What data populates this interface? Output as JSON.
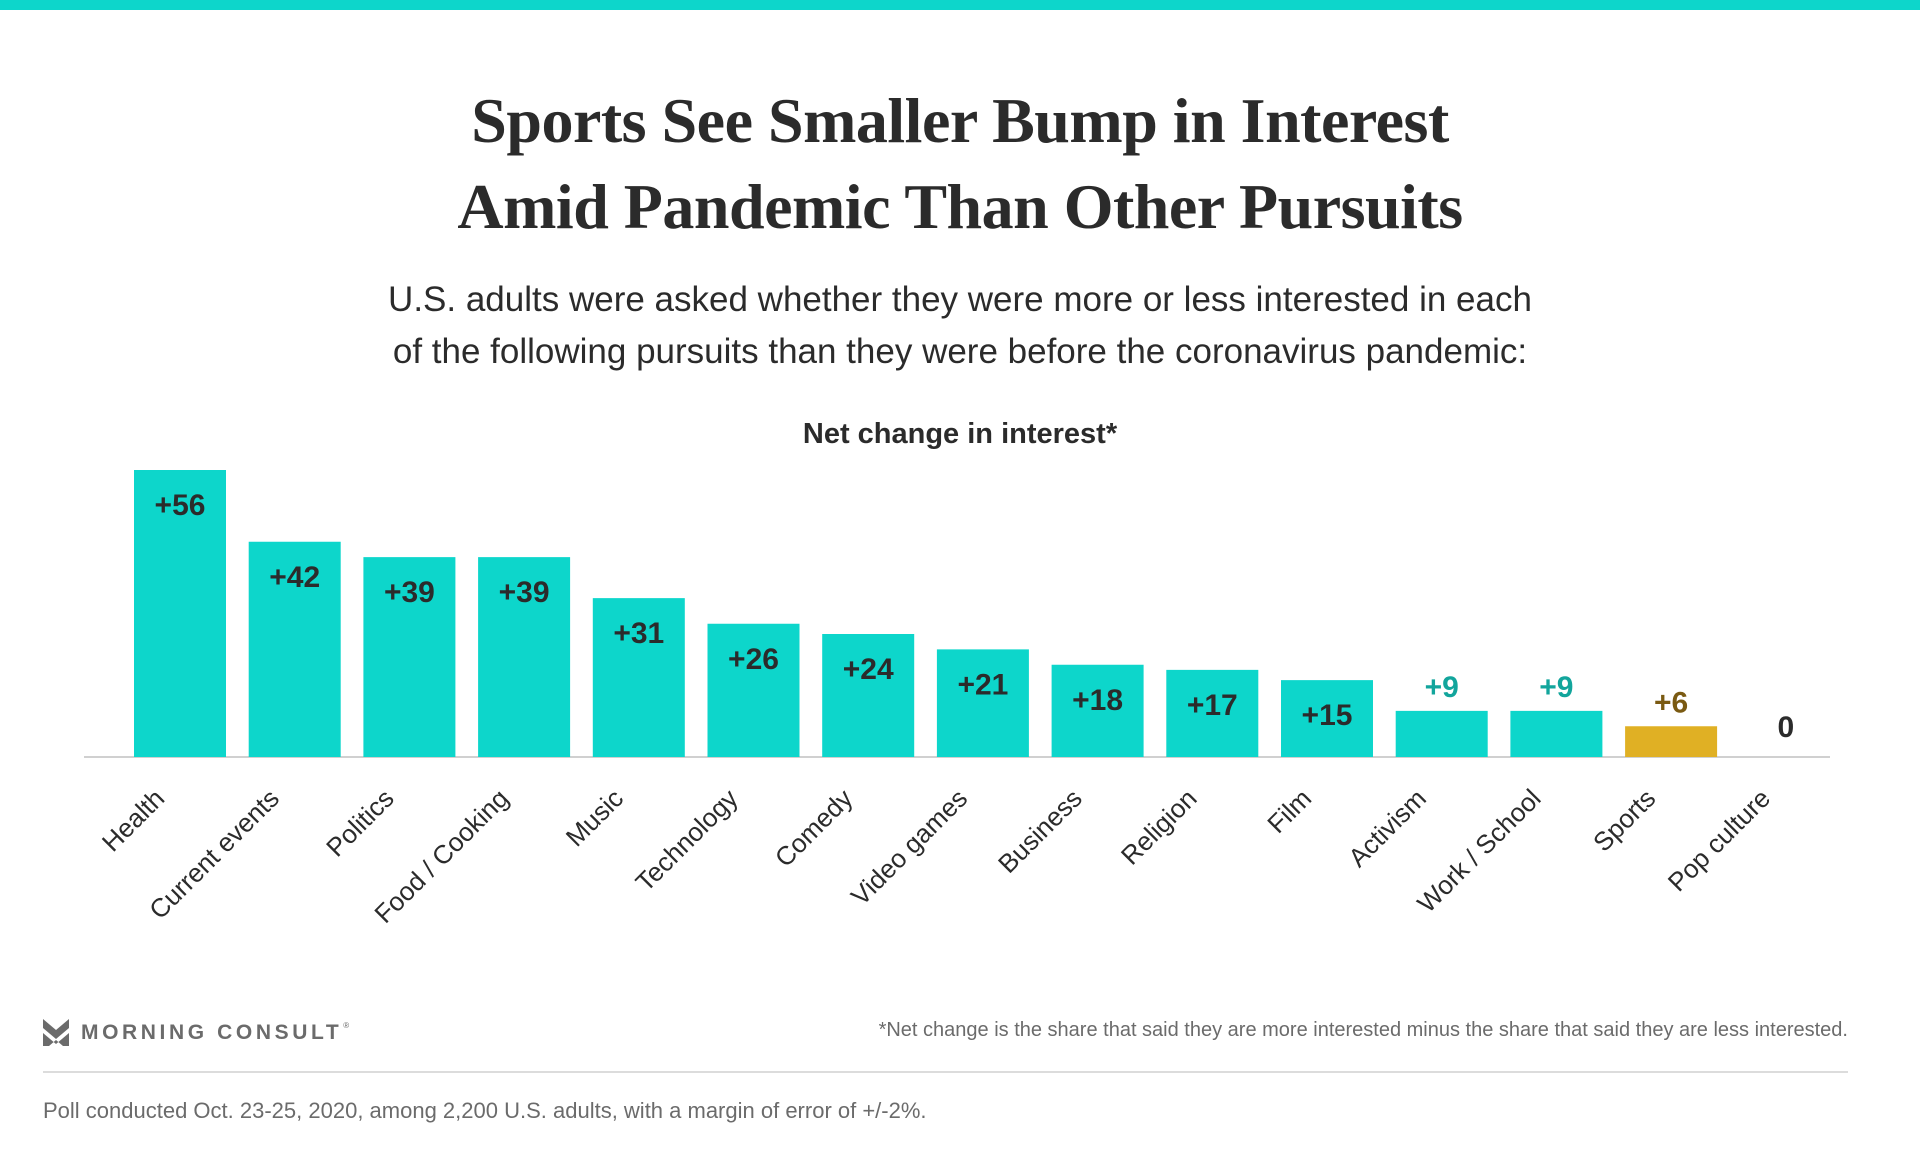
{
  "header": {
    "title_line1": "Sports See Smaller Bump in Interest",
    "title_line2": "Amid Pandemic Than Other Pursuits",
    "subtitle_line1": "U.S. adults were asked whether they were more or less interested in each",
    "subtitle_line2": "of the following pursuits than they were before the coronavirus pandemic:"
  },
  "colors": {
    "accent": "#0dd6cb",
    "highlight": "#e0b024",
    "label_dark": "#2b2b2b",
    "label_teal": "#12a59c",
    "label_highlight": "#7a5a12",
    "baseline": "#d0d0d0"
  },
  "chart_data": {
    "type": "bar",
    "title": "Net change in interest*",
    "xlabel": "",
    "ylabel": "",
    "ylim": [
      0,
      56
    ],
    "grid": false,
    "categories": [
      "Health",
      "Current events",
      "Politics",
      "Food / Cooking",
      "Music",
      "Technology",
      "Comedy",
      "Video games",
      "Business",
      "Religion",
      "Film",
      "Activism",
      "Work / School",
      "Sports",
      "Pop culture"
    ],
    "values": [
      56,
      42,
      39,
      39,
      31,
      26,
      24,
      21,
      18,
      17,
      15,
      9,
      9,
      6,
      0
    ],
    "value_labels": [
      "+56",
      "+42",
      "+39",
      "+39",
      "+31",
      "+26",
      "+24",
      "+21",
      "+18",
      "+17",
      "+15",
      "+9",
      "+9",
      "+6",
      "0"
    ],
    "highlighted_category": "Sports"
  },
  "footer": {
    "brand": "MORNING CONSULT",
    "brand_mark": "®",
    "footnote": "*Net change is the share that said they are more interested minus the share that said they are less interested.",
    "poll_note": "Poll conducted Oct. 23-25, 2020, among 2,200 U.S. adults, with a margin of error of +/-2%."
  }
}
